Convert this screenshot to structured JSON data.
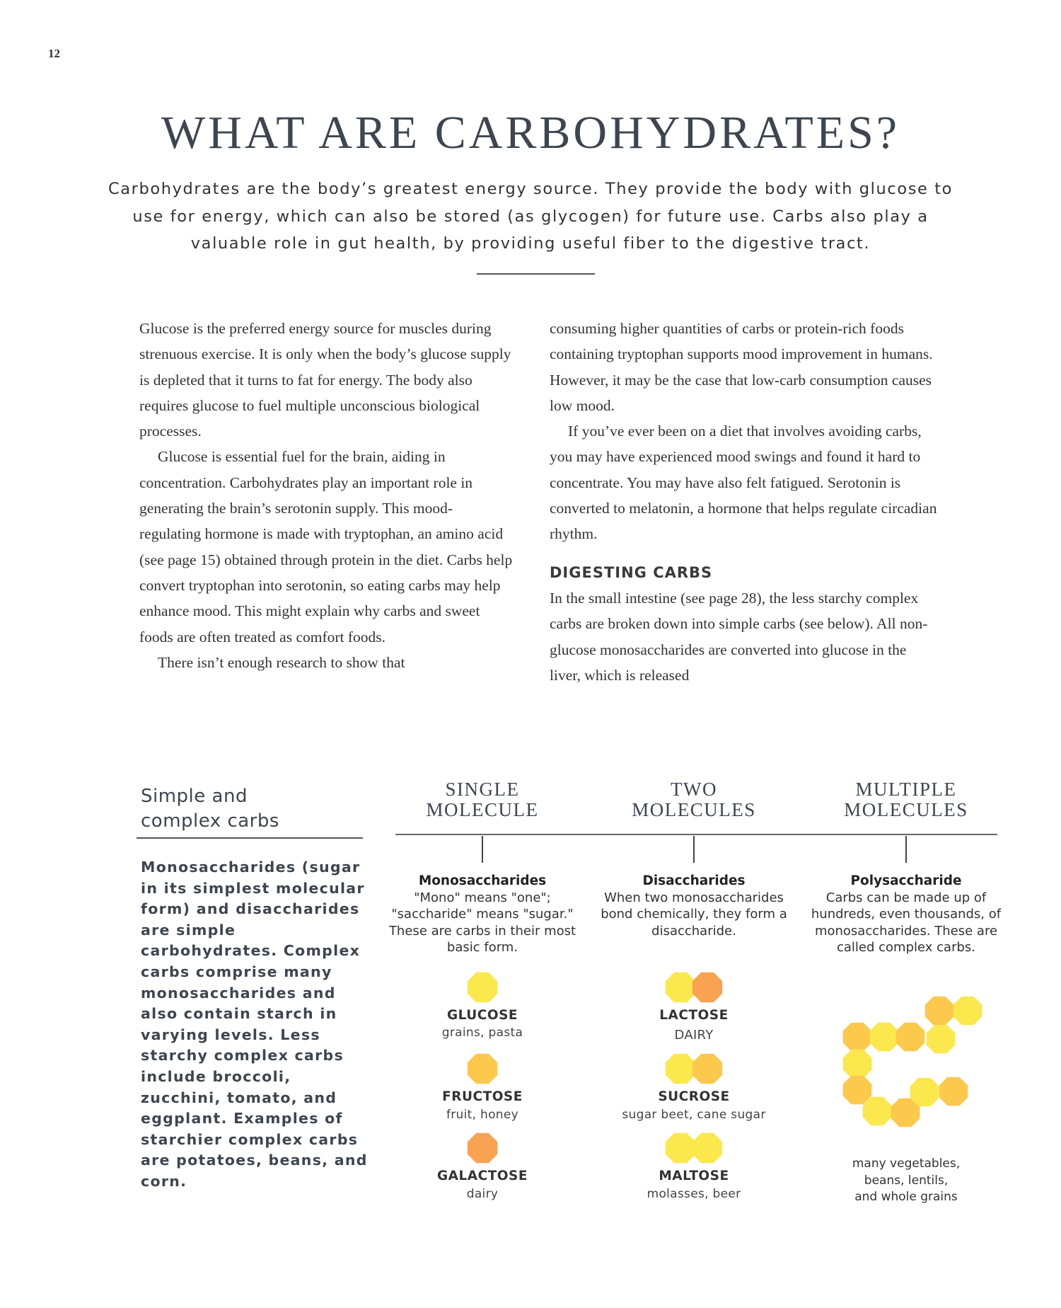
{
  "page_number": "12",
  "title": "WHAT ARE CARBOHYDRATES?",
  "intro": "Carbohydrates are the body’s greatest energy source. They provide the body with glucose to use for energy, which can also be stored (as glycogen) for future use. Carbs also play a valuable role in gut health, by providing useful fiber to the digestive tract.",
  "body": {
    "col1": [
      "Glucose is the preferred energy source for muscles during strenuous exercise. It is only when the body’s glucose supply is depleted that it turns to fat for energy. The body also requires glucose to fuel multiple unconscious biological processes.",
      "Glucose is essential fuel for the brain, aiding in concentration. Carbohydrates play an important role in generating the brain’s serotonin supply. This mood-regulating hormone is made with tryptophan, an amino acid (see page 15) obtained through protein in the diet. Carbs help convert tryptophan into serotonin, so eating carbs may help enhance mood. This might explain why carbs and sweet foods are often treated as comfort foods.",
      "There isn’t enough research to show that"
    ],
    "col2": [
      "consuming higher quantities of carbs or protein-rich foods containing tryptophan supports mood improvement in humans. However, it may be the case that low-carb consumption causes low mood.",
      "If you’ve ever been on a diet that involves avoiding carbs, you may have experienced mood swings and found it hard to concentrate. You may have also felt fatigued. Serotonin is converted to melatonin, a hormone that helps regulate circadian rhythm."
    ],
    "digesting_heading": "DIGESTING CARBS",
    "digesting_text": "In the small intestine (see page 28), the less starchy complex carbs are broken down into simple carbs (see below). All non-glucose monosaccharides are converted into glucose in the liver, which is released"
  },
  "infographic": {
    "heading_line1": "Simple and",
    "heading_line2": "complex carbs",
    "summary": "Monosaccharides (sugar in its simplest molecular form) and disaccharides are simple carbohydrates. Complex carbs comprise many monosaccharides and also contain starch in varying levels. Less starchy complex carbs include broccoli, zucchini, tomato, and eggplant. Examples of starchier complex carbs are potatoes, beans, and corn.",
    "columns": [
      {
        "head1": "SINGLE",
        "head2": "MOLECULE",
        "type": "Monosaccharides",
        "desc": "\"Mono\" means \"one\"; \"saccharide\" means \"sugar.\" These are carbs in their most basic form."
      },
      {
        "head1": "TWO",
        "head2": "MOLECULES",
        "type": "Disaccharides",
        "desc": "When two monosaccharides bond chemically, they form a disaccharide."
      },
      {
        "head1": "MULTIPLE",
        "head2": "MOLECULES",
        "type": "Polysaccharide",
        "desc": "Carbs can be made up of hundreds, even thousands, of monosaccharides. These are called complex carbs."
      }
    ],
    "monosaccharides": [
      {
        "name": "GLUCOSE",
        "source": "grains, pasta",
        "color": "#fbe84c"
      },
      {
        "name": "FRUCTOSE",
        "source": "fruit, honey",
        "color": "#fcc94c"
      },
      {
        "name": "GALACTOSE",
        "source": "dairy",
        "color": "#f9a352"
      }
    ],
    "disaccharides": [
      {
        "name": "LACTOSE",
        "source": "DAIRY",
        "colors": [
          "#fbe84c",
          "#f9a352"
        ]
      },
      {
        "name": "SUCROSE",
        "source": "sugar beet, cane sugar",
        "colors": [
          "#fbe84c",
          "#fcc94c"
        ]
      },
      {
        "name": "MALTOSE",
        "source": "molasses, beer",
        "colors": [
          "#fbe84c",
          "#fbe84c"
        ]
      }
    ],
    "polysaccharide_source": [
      "many vegetables,",
      "beans, lentils,",
      "and whole grains"
    ]
  }
}
